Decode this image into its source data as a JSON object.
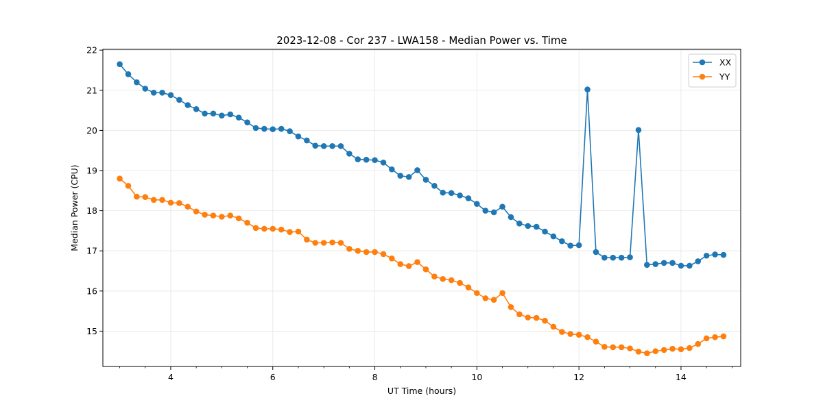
{
  "chart_data": {
    "type": "line",
    "title": "2023-12-08 - Cor 237 - LWA158 - Median Power vs. Time",
    "xlabel": "UT Time (hours)",
    "ylabel": "Median Power (CPU)",
    "xlim": [
      2.67,
      15.17
    ],
    "ylim": [
      14.12,
      22.02
    ],
    "xticks": [
      4,
      6,
      8,
      10,
      12,
      14
    ],
    "xtick_labels": [
      "4",
      "6",
      "8",
      "10",
      "12",
      "14"
    ],
    "yticks": [
      15,
      16,
      17,
      18,
      19,
      20,
      21,
      22
    ],
    "ytick_labels": [
      "15",
      "16",
      "17",
      "18",
      "19",
      "20",
      "21",
      "22"
    ],
    "grid": true,
    "legend_position": "top-right",
    "x": [
      3.0,
      3.167,
      3.333,
      3.5,
      3.667,
      3.833,
      4.0,
      4.167,
      4.333,
      4.5,
      4.667,
      4.833,
      5.0,
      5.167,
      5.333,
      5.5,
      5.667,
      5.833,
      6.0,
      6.167,
      6.333,
      6.5,
      6.667,
      6.833,
      7.0,
      7.167,
      7.333,
      7.5,
      7.667,
      7.833,
      8.0,
      8.167,
      8.333,
      8.5,
      8.667,
      8.833,
      9.0,
      9.167,
      9.333,
      9.5,
      9.667,
      9.833,
      10.0,
      10.167,
      10.333,
      10.5,
      10.667,
      10.833,
      11.0,
      11.167,
      11.333,
      11.5,
      11.667,
      11.833,
      12.0,
      12.167,
      12.333,
      12.5,
      12.667,
      12.833,
      13.0,
      13.167,
      13.333,
      13.5,
      13.667,
      13.833,
      14.0,
      14.167,
      14.333,
      14.5,
      14.667,
      14.833
    ],
    "series": [
      {
        "name": "XX",
        "color": "#1f77b4",
        "values": [
          21.65,
          21.4,
          21.2,
          21.04,
          20.94,
          20.94,
          20.88,
          20.76,
          20.63,
          20.53,
          20.42,
          20.42,
          20.37,
          20.4,
          20.32,
          20.2,
          20.06,
          20.04,
          20.03,
          20.04,
          19.98,
          19.85,
          19.75,
          19.62,
          19.61,
          19.61,
          19.61,
          19.42,
          19.28,
          19.27,
          19.26,
          19.2,
          19.03,
          18.87,
          18.84,
          19.01,
          18.77,
          18.62,
          18.45,
          18.44,
          18.38,
          18.31,
          18.17,
          18.0,
          17.96,
          18.1,
          17.84,
          17.68,
          17.62,
          17.6,
          17.48,
          17.36,
          17.24,
          17.13,
          17.14,
          21.02,
          16.97,
          16.83,
          16.83,
          16.83,
          16.84,
          20.01,
          16.65,
          16.67,
          16.7,
          16.7,
          16.63,
          16.63,
          16.74,
          16.88,
          16.91,
          16.9
        ]
      },
      {
        "name": "YY",
        "color": "#ff7f0e",
        "values": [
          18.8,
          18.62,
          18.35,
          18.34,
          18.27,
          18.27,
          18.2,
          18.19,
          18.1,
          17.98,
          17.9,
          17.88,
          17.85,
          17.88,
          17.81,
          17.7,
          17.57,
          17.55,
          17.55,
          17.53,
          17.47,
          17.48,
          17.28,
          17.2,
          17.2,
          17.21,
          17.2,
          17.05,
          17.0,
          16.97,
          16.97,
          16.92,
          16.81,
          16.67,
          16.62,
          16.72,
          16.54,
          16.36,
          16.3,
          16.27,
          16.2,
          16.09,
          15.95,
          15.82,
          15.78,
          15.95,
          15.6,
          15.42,
          15.34,
          15.33,
          15.26,
          15.11,
          14.98,
          14.93,
          14.91,
          14.85,
          14.74,
          14.61,
          14.6,
          14.6,
          14.57,
          14.49,
          14.45,
          14.5,
          14.53,
          14.56,
          14.55,
          14.58,
          14.68,
          14.82,
          14.85,
          14.87
        ]
      }
    ]
  }
}
